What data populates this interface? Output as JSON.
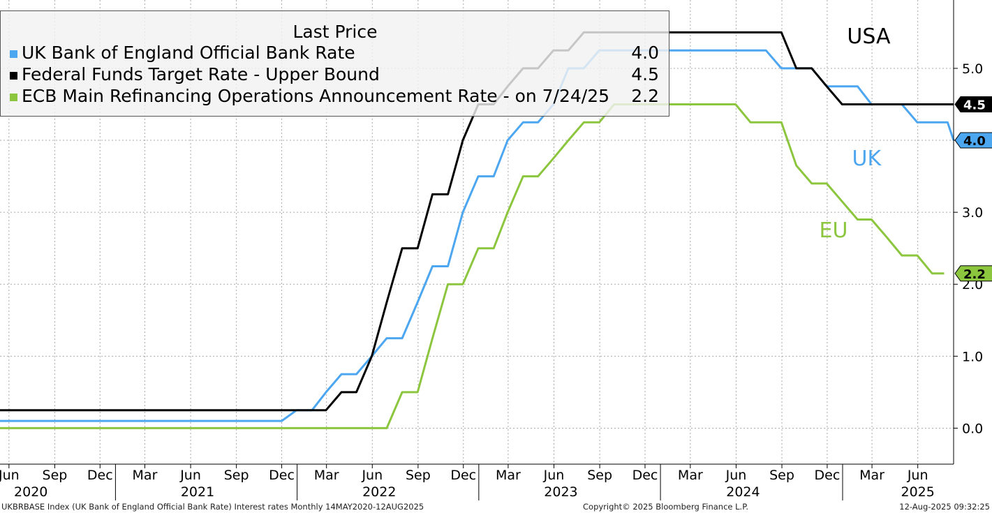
{
  "chart_data": {
    "type": "line",
    "legend_title": "Last Price",
    "legend_placement": "top-left",
    "grid": true,
    "ylim": [
      -0.5,
      5.95
    ],
    "yticks": [
      0.0,
      1.0,
      2.0,
      3.0,
      4.0,
      5.0
    ],
    "ytick_labels": [
      "0.0",
      "1.0",
      "2.0",
      "3.0",
      "4.0",
      "5.0"
    ],
    "xlim": [
      "2020-05-14",
      "2025-08-12"
    ],
    "month_ticks": [
      {
        "date": "2020-06-01",
        "label": "Jun"
      },
      {
        "date": "2020-09-01",
        "label": "Sep"
      },
      {
        "date": "2020-12-01",
        "label": "Dec"
      },
      {
        "date": "2021-03-01",
        "label": "Mar"
      },
      {
        "date": "2021-06-01",
        "label": "Jun"
      },
      {
        "date": "2021-09-01",
        "label": "Sep"
      },
      {
        "date": "2021-12-01",
        "label": "Dec"
      },
      {
        "date": "2022-03-01",
        "label": "Mar"
      },
      {
        "date": "2022-06-01",
        "label": "Jun"
      },
      {
        "date": "2022-09-01",
        "label": "Sep"
      },
      {
        "date": "2022-12-01",
        "label": "Dec"
      },
      {
        "date": "2023-03-01",
        "label": "Mar"
      },
      {
        "date": "2023-06-01",
        "label": "Jun"
      },
      {
        "date": "2023-09-01",
        "label": "Sep"
      },
      {
        "date": "2023-12-01",
        "label": "Dec"
      },
      {
        "date": "2024-03-01",
        "label": "Mar"
      },
      {
        "date": "2024-06-01",
        "label": "Jun"
      },
      {
        "date": "2024-09-01",
        "label": "Sep"
      },
      {
        "date": "2024-12-01",
        "label": "Dec"
      },
      {
        "date": "2025-03-01",
        "label": "Mar"
      },
      {
        "date": "2025-06-01",
        "label": "Jun"
      }
    ],
    "year_labels": [
      {
        "date": "2020-07-15",
        "label": "2020"
      },
      {
        "date": "2021-06-15",
        "label": "2021"
      },
      {
        "date": "2022-06-15",
        "label": "2022"
      },
      {
        "date": "2023-06-15",
        "label": "2023"
      },
      {
        "date": "2024-06-15",
        "label": "2024"
      },
      {
        "date": "2025-06-01",
        "label": "2025"
      }
    ],
    "year_separators": [
      "2021-01-01",
      "2022-01-01",
      "2023-01-01",
      "2024-01-01",
      "2025-01-01"
    ],
    "series": [
      {
        "name": "UK Bank of England Official Bank Rate",
        "last_price": "4.0",
        "color": "#4da6f0",
        "points": [
          [
            "2020-05-14",
            0.1
          ],
          [
            "2021-12-01",
            0.1
          ],
          [
            "2021-12-31",
            0.25
          ],
          [
            "2022-01-31",
            0.25
          ],
          [
            "2022-02-28",
            0.5
          ],
          [
            "2022-03-31",
            0.75
          ],
          [
            "2022-04-30",
            0.75
          ],
          [
            "2022-05-31",
            1.0
          ],
          [
            "2022-06-30",
            1.25
          ],
          [
            "2022-07-31",
            1.25
          ],
          [
            "2022-08-31",
            1.75
          ],
          [
            "2022-09-30",
            2.25
          ],
          [
            "2022-10-31",
            2.25
          ],
          [
            "2022-11-30",
            3.0
          ],
          [
            "2022-12-31",
            3.5
          ],
          [
            "2023-01-31",
            3.5
          ],
          [
            "2023-02-28",
            4.0
          ],
          [
            "2023-03-31",
            4.25
          ],
          [
            "2023-04-30",
            4.25
          ],
          [
            "2023-05-31",
            4.5
          ],
          [
            "2023-06-30",
            5.0
          ],
          [
            "2023-07-31",
            5.0
          ],
          [
            "2023-08-31",
            5.25
          ],
          [
            "2024-07-31",
            5.25
          ],
          [
            "2024-08-31",
            5.0
          ],
          [
            "2024-10-31",
            5.0
          ],
          [
            "2024-11-30",
            4.75
          ],
          [
            "2025-01-31",
            4.75
          ],
          [
            "2025-02-28",
            4.5
          ],
          [
            "2025-04-30",
            4.5
          ],
          [
            "2025-05-31",
            4.25
          ],
          [
            "2025-07-31",
            4.25
          ],
          [
            "2025-08-12",
            4.0
          ]
        ]
      },
      {
        "name": "Federal Funds Target Rate - Upper Bound",
        "last_price": "4.5",
        "color": "#000000",
        "points": [
          [
            "2020-05-14",
            0.25
          ],
          [
            "2022-02-28",
            0.25
          ],
          [
            "2022-03-31",
            0.5
          ],
          [
            "2022-04-30",
            0.5
          ],
          [
            "2022-05-31",
            1.0
          ],
          [
            "2022-06-30",
            1.75
          ],
          [
            "2022-07-31",
            2.5
          ],
          [
            "2022-08-31",
            2.5
          ],
          [
            "2022-09-30",
            3.25
          ],
          [
            "2022-10-31",
            3.25
          ],
          [
            "2022-11-30",
            4.0
          ],
          [
            "2022-12-31",
            4.5
          ],
          [
            "2023-01-31",
            4.5
          ],
          [
            "2023-02-28",
            4.75
          ],
          [
            "2023-03-31",
            5.0
          ],
          [
            "2023-04-30",
            5.0
          ],
          [
            "2023-05-31",
            5.25
          ],
          [
            "2023-06-30",
            5.25
          ],
          [
            "2023-07-31",
            5.5
          ],
          [
            "2024-08-31",
            5.5
          ],
          [
            "2024-09-30",
            5.0
          ],
          [
            "2024-10-31",
            5.0
          ],
          [
            "2024-11-30",
            4.75
          ],
          [
            "2024-12-31",
            4.5
          ],
          [
            "2025-08-12",
            4.5
          ]
        ]
      },
      {
        "name": "ECB Main Refinancing Operations Announcement Rate -  on 7/24/25",
        "last_price": "2.2",
        "color": "#8cc63f",
        "points": [
          [
            "2020-05-14",
            0.0
          ],
          [
            "2022-06-30",
            0.0
          ],
          [
            "2022-07-31",
            0.5
          ],
          [
            "2022-08-31",
            0.5
          ],
          [
            "2022-09-30",
            1.25
          ],
          [
            "2022-10-31",
            2.0
          ],
          [
            "2022-11-30",
            2.0
          ],
          [
            "2022-12-31",
            2.5
          ],
          [
            "2023-01-31",
            2.5
          ],
          [
            "2023-02-28",
            3.0
          ],
          [
            "2023-03-31",
            3.5
          ],
          [
            "2023-04-30",
            3.5
          ],
          [
            "2023-05-31",
            3.75
          ],
          [
            "2023-06-30",
            4.0
          ],
          [
            "2023-07-31",
            4.25
          ],
          [
            "2023-08-31",
            4.25
          ],
          [
            "2023-09-30",
            4.5
          ],
          [
            "2024-05-31",
            4.5
          ],
          [
            "2024-06-30",
            4.25
          ],
          [
            "2024-08-31",
            4.25
          ],
          [
            "2024-09-30",
            3.65
          ],
          [
            "2024-10-31",
            3.4
          ],
          [
            "2024-11-30",
            3.4
          ],
          [
            "2024-12-31",
            3.15
          ],
          [
            "2025-01-31",
            2.9
          ],
          [
            "2025-02-28",
            2.9
          ],
          [
            "2025-03-31",
            2.65
          ],
          [
            "2025-04-30",
            2.4
          ],
          [
            "2025-05-31",
            2.4
          ],
          [
            "2025-06-30",
            2.15
          ],
          [
            "2025-07-24",
            2.15
          ]
        ]
      }
    ],
    "annotations": [
      {
        "text": "USA",
        "color": "#000000",
        "date": "2025-01-10",
        "y": 5.35
      },
      {
        "text": "UK",
        "color": "#4da6f0",
        "date": "2025-01-20",
        "y": 3.65
      },
      {
        "text": "EU",
        "color": "#8cc63f",
        "date": "2024-11-15",
        "y": 2.65
      }
    ]
  },
  "footer": {
    "left": "UKBRBASE Index (UK Bank of England Official Bank Rate) Interest rates  Monthly 14MAY2020-12AUG2025",
    "center": "Copyright© 2025 Bloomberg Finance L.P.",
    "right": "12-Aug-2025 09:32:25"
  }
}
